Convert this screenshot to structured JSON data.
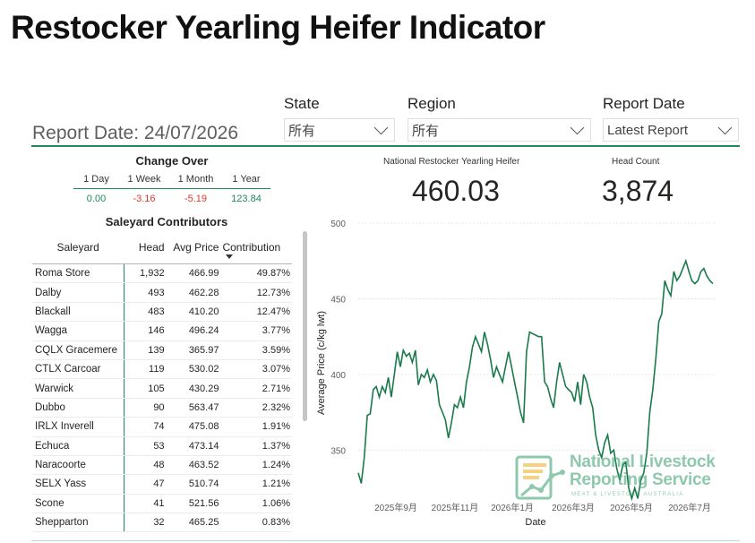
{
  "page": {
    "title": "Restocker Yearling Heifer Indicator",
    "report_date_label": "Report Date: 24/07/2026"
  },
  "slicers": {
    "state": {
      "label": "State",
      "value": "所有"
    },
    "region": {
      "label": "Region",
      "value": "所有"
    },
    "report_date": {
      "label": "Report Date",
      "value": "Latest Report"
    }
  },
  "change_over": {
    "title": "Change Over",
    "headers": [
      "1 Day",
      "1 Week",
      "1 Month",
      "1 Year"
    ],
    "values": [
      "0.00",
      "-3.16",
      "-5.19",
      "123.84"
    ]
  },
  "saleyards": {
    "title": "Saleyard Contributors",
    "columns": [
      "Saleyard",
      "Head",
      "Avg Price",
      "Contribution"
    ],
    "rows": [
      [
        "Roma Store",
        "1,932",
        "466.99",
        "49.87%"
      ],
      [
        "Dalby",
        "493",
        "462.28",
        "12.73%"
      ],
      [
        "Blackall",
        "483",
        "410.20",
        "12.47%"
      ],
      [
        "Wagga",
        "146",
        "496.24",
        "3.77%"
      ],
      [
        "CQLX Gracemere",
        "139",
        "365.97",
        "3.59%"
      ],
      [
        "CTLX Carcoar",
        "119",
        "530.02",
        "3.07%"
      ],
      [
        "Warwick",
        "105",
        "430.29",
        "2.71%"
      ],
      [
        "Dubbo",
        "90",
        "563.47",
        "2.32%"
      ],
      [
        "IRLX Inverell",
        "74",
        "475.08",
        "1.91%"
      ],
      [
        "Echuca",
        "53",
        "473.14",
        "1.37%"
      ],
      [
        "Naracoorte",
        "48",
        "463.52",
        "1.24%"
      ],
      [
        "SELX Yass",
        "47",
        "510.74",
        "1.21%"
      ],
      [
        "Scone",
        "41",
        "521.56",
        "1.06%"
      ],
      [
        "Shepparton",
        "32",
        "465.25",
        "0.83%"
      ]
    ]
  },
  "kpis": {
    "national_label": "National Restocker Yearling Heifer",
    "national_value": "460.03",
    "headcount_label": "Head Count",
    "headcount_value": "3,874"
  },
  "colors": {
    "accent": "#1f8a5a",
    "negative": "#e0372f",
    "line": "#1a7a4c"
  },
  "watermark": {
    "line1": "National Livestock",
    "line2": "Reporting Service",
    "line3": "MEAT & LIVESTOCK AUSTRALIA",
    "icon": "chart-trend-logo-icon"
  },
  "chart_data": {
    "type": "line",
    "xlabel": "Date",
    "ylabel": "Average Price (c/kg lwt)",
    "ylim": [
      320,
      500
    ],
    "yticks": [
      350,
      400,
      450,
      500
    ],
    "xticks": [
      "2025年9月",
      "2025年11月",
      "2026年1月",
      "2026年3月",
      "2026年5月",
      "2026年7月"
    ],
    "grid": true,
    "series": [
      {
        "values": [
          [
            0,
            335
          ],
          [
            3,
            328
          ],
          [
            6,
            345
          ],
          [
            9,
            373
          ],
          [
            12,
            374
          ],
          [
            15,
            390
          ],
          [
            18,
            392
          ],
          [
            21,
            385
          ],
          [
            24,
            392
          ],
          [
            27,
            388
          ],
          [
            30,
            398
          ],
          [
            33,
            385
          ],
          [
            36,
            400
          ],
          [
            39,
            415
          ],
          [
            42,
            405
          ],
          [
            45,
            416
          ],
          [
            48,
            412
          ],
          [
            51,
            414
          ],
          [
            54,
            408
          ],
          [
            57,
            416
          ],
          [
            60,
            393
          ],
          [
            63,
            400
          ],
          [
            66,
            398
          ],
          [
            69,
            403
          ],
          [
            72,
            395
          ],
          [
            75,
            400
          ],
          [
            78,
            396
          ],
          [
            81,
            380
          ],
          [
            84,
            375
          ],
          [
            87,
            370
          ],
          [
            90,
            358
          ],
          [
            93,
            368
          ],
          [
            96,
            380
          ],
          [
            99,
            378
          ],
          [
            102,
            385
          ],
          [
            105,
            378
          ],
          [
            108,
            395
          ],
          [
            111,
            405
          ],
          [
            114,
            418
          ],
          [
            117,
            425
          ],
          [
            120,
            420
          ],
          [
            123,
            415
          ],
          [
            126,
            428
          ],
          [
            129,
            420
          ],
          [
            132,
            410
          ],
          [
            135,
            398
          ],
          [
            138,
            405
          ],
          [
            141,
            400
          ],
          [
            144,
            395
          ],
          [
            147,
            405
          ],
          [
            150,
            415
          ],
          [
            153,
            405
          ],
          [
            156,
            395
          ],
          [
            159,
            385
          ],
          [
            162,
            375
          ],
          [
            165,
            368
          ],
          [
            168,
            415
          ],
          [
            171,
            428
          ],
          [
            174,
            427
          ],
          [
            177,
            426
          ],
          [
            180,
            425
          ],
          [
            183,
            425
          ],
          [
            186,
            395
          ],
          [
            189,
            392
          ],
          [
            192,
            384
          ],
          [
            195,
            378
          ],
          [
            198,
            395
          ],
          [
            201,
            408
          ],
          [
            204,
            400
          ],
          [
            207,
            392
          ],
          [
            210,
            390
          ],
          [
            213,
            388
          ],
          [
            216,
            382
          ],
          [
            219,
            395
          ],
          [
            222,
            380
          ],
          [
            225,
            400
          ],
          [
            228,
            395
          ],
          [
            231,
            385
          ],
          [
            234,
            378
          ],
          [
            237,
            360
          ],
          [
            240,
            350
          ],
          [
            243,
            345
          ],
          [
            246,
            355
          ],
          [
            249,
            360
          ],
          [
            252,
            348
          ],
          [
            255,
            350
          ],
          [
            258,
            338
          ],
          [
            261,
            330
          ],
          [
            264,
            340
          ],
          [
            267,
            342
          ],
          [
            270,
            325
          ],
          [
            273,
            318
          ],
          [
            276,
            325
          ],
          [
            279,
            318
          ],
          [
            282,
            330
          ],
          [
            285,
            335
          ],
          [
            288,
            348
          ],
          [
            291,
            375
          ],
          [
            294,
            390
          ],
          [
            297,
            410
          ],
          [
            300,
            435
          ],
          [
            303,
            440
          ],
          [
            306,
            462
          ],
          [
            309,
            456
          ],
          [
            312,
            452
          ],
          [
            315,
            468
          ],
          [
            318,
            462
          ],
          [
            321,
            465
          ],
          [
            324,
            470
          ],
          [
            327,
            475
          ],
          [
            330,
            468
          ],
          [
            333,
            462
          ],
          [
            336,
            460
          ],
          [
            339,
            462
          ],
          [
            342,
            468
          ],
          [
            345,
            470
          ],
          [
            348,
            465
          ],
          [
            351,
            462
          ],
          [
            354,
            460
          ]
        ]
      }
    ]
  }
}
